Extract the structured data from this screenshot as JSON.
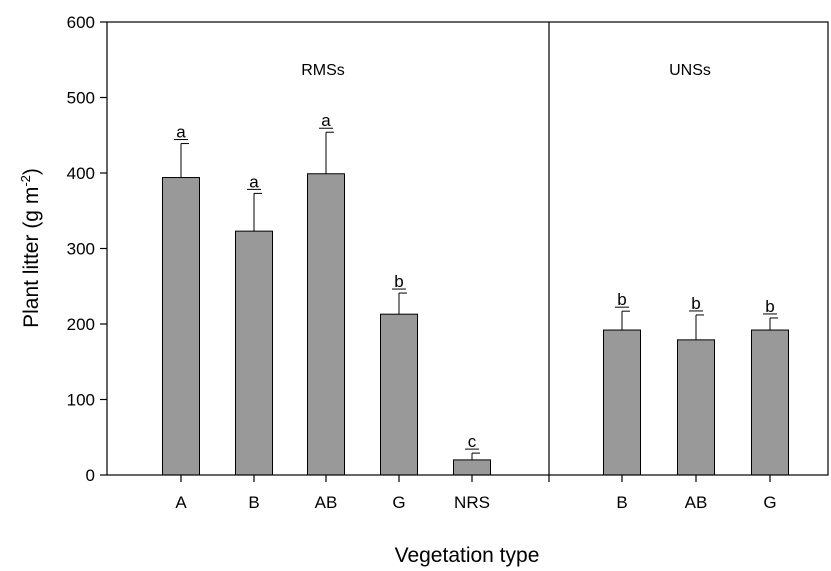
{
  "chart_data": {
    "type": "bar",
    "xlabel": "Vegetation type",
    "ylabel": "Plant litter (g m",
    "ylabel_sup": "-2",
    "ylabel_close": ")",
    "ylim": [
      0,
      600
    ],
    "yticks": [
      0,
      100,
      200,
      300,
      400,
      500,
      600
    ],
    "grid": false,
    "bar_color": "#999999",
    "groups": [
      {
        "label": "RMSs",
        "bars": [
          {
            "category": "A",
            "value": 394,
            "error": 45,
            "letter": "a"
          },
          {
            "category": "B",
            "value": 323,
            "error": 50,
            "letter": "a"
          },
          {
            "category": "AB",
            "value": 399,
            "error": 55,
            "letter": "a"
          },
          {
            "category": "G",
            "value": 213,
            "error": 28,
            "letter": "b"
          },
          {
            "category": "NRS",
            "value": 20,
            "error": 9,
            "letter": "c"
          }
        ]
      },
      {
        "label": "UNSs",
        "bars": [
          {
            "category": "B",
            "value": 192,
            "error": 25,
            "letter": "b"
          },
          {
            "category": "AB",
            "value": 179,
            "error": 33,
            "letter": "b"
          },
          {
            "category": "G",
            "value": 192,
            "error": 16,
            "letter": "b"
          }
        ]
      }
    ]
  }
}
